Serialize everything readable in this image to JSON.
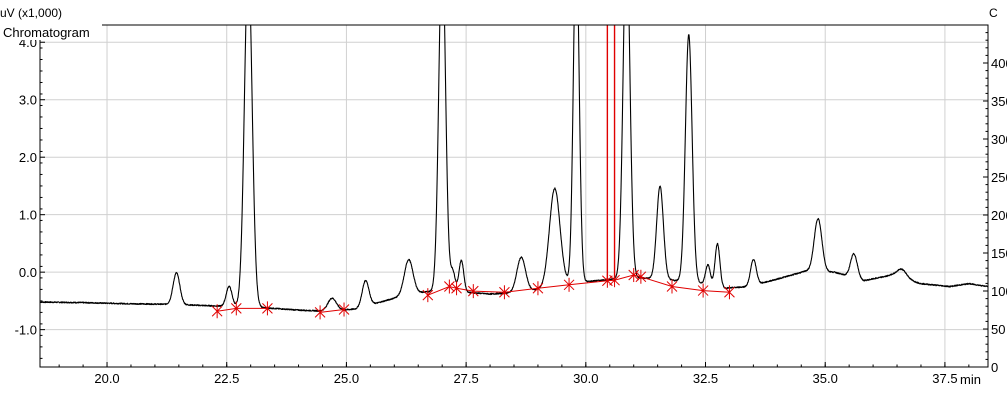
{
  "chart_data": {
    "type": "line",
    "title": "",
    "legend": "Chromatogram",
    "legend_position": "top-left",
    "ylabel_left": "uV (x1,000)",
    "ylabel_right": "C",
    "xunit": "min",
    "xlim": [
      18.6,
      38.4
    ],
    "ylim_left": [
      -1.65,
      4.3
    ],
    "ylim_right": [
      0,
      45
    ],
    "grid": true,
    "x_ticks": [
      20.0,
      22.5,
      25.0,
      27.5,
      30.0,
      32.5,
      35.0,
      37.5
    ],
    "x_tick_labels": [
      "20.0",
      "22.5",
      "25.0",
      "27.5",
      "30.0",
      "32.5",
      "35.0",
      "37.5"
    ],
    "y_ticks": [
      -1.0,
      0.0,
      1.0,
      2.0,
      3.0,
      4.0
    ],
    "y_tick_labels": [
      "-1.0",
      "0.0",
      "1.0",
      "2.0",
      "3.0",
      "4.0"
    ],
    "right_ticks": [
      0,
      5,
      10,
      15,
      20,
      25,
      30,
      35,
      40
    ],
    "right_tick_labels": [
      "0",
      "50",
      "100",
      "150",
      "200",
      "250",
      "300",
      "350",
      "400"
    ],
    "colors": {
      "trace": "#000000",
      "integration": "#e00000",
      "grid": "#d0d0d0",
      "axis": "#000000"
    },
    "series": [
      {
        "name": "Chromatogram",
        "baseline": [
          [
            18.6,
            -0.52
          ],
          [
            19.5,
            -0.53
          ],
          [
            20.5,
            -0.55
          ],
          [
            21.4,
            -0.56
          ],
          [
            22.0,
            -0.58
          ],
          [
            22.7,
            -0.6
          ],
          [
            23.3,
            -0.62
          ],
          [
            24.0,
            -0.66
          ],
          [
            24.6,
            -0.68
          ],
          [
            25.2,
            -0.64
          ],
          [
            25.8,
            -0.5
          ],
          [
            26.3,
            -0.38
          ],
          [
            26.9,
            -0.32
          ],
          [
            27.5,
            -0.35
          ],
          [
            28.0,
            -0.38
          ],
          [
            28.5,
            -0.36
          ],
          [
            29.0,
            -0.3
          ],
          [
            29.6,
            -0.2
          ],
          [
            30.2,
            -0.15
          ],
          [
            30.8,
            -0.1
          ],
          [
            31.2,
            -0.1
          ],
          [
            31.8,
            -0.14
          ],
          [
            32.3,
            -0.18
          ],
          [
            32.9,
            -0.28
          ],
          [
            33.4,
            -0.25
          ],
          [
            34.0,
            -0.12
          ],
          [
            34.6,
            0.02
          ],
          [
            35.2,
            0.0
          ],
          [
            35.8,
            -0.15
          ],
          [
            36.4,
            -0.05
          ],
          [
            37.0,
            -0.2
          ],
          [
            37.6,
            -0.25
          ],
          [
            38.0,
            -0.2
          ],
          [
            38.4,
            -0.25
          ]
        ],
        "peaks": [
          {
            "rt": 21.45,
            "height": 0.55,
            "width": 0.07
          },
          {
            "rt": 22.55,
            "height": 0.35,
            "width": 0.06
          },
          {
            "rt": 22.95,
            "height": 6.0,
            "width": 0.08
          },
          {
            "rt": 24.7,
            "height": 0.22,
            "width": 0.09
          },
          {
            "rt": 25.4,
            "height": 0.45,
            "width": 0.07
          },
          {
            "rt": 26.3,
            "height": 0.6,
            "width": 0.09
          },
          {
            "rt": 27.0,
            "height": 6.0,
            "width": 0.07
          },
          {
            "rt": 27.22,
            "height": 0.35,
            "width": 0.05
          },
          {
            "rt": 27.4,
            "height": 0.55,
            "width": 0.05
          },
          {
            "rt": 28.65,
            "height": 0.6,
            "width": 0.09
          },
          {
            "rt": 29.35,
            "height": 1.7,
            "width": 0.11
          },
          {
            "rt": 29.8,
            "height": 6.0,
            "width": 0.06
          },
          {
            "rt": 30.85,
            "height": 6.0,
            "width": 0.07
          },
          {
            "rt": 31.55,
            "height": 1.62,
            "width": 0.07
          },
          {
            "rt": 32.15,
            "height": 4.3,
            "width": 0.07
          },
          {
            "rt": 32.55,
            "height": 0.35,
            "width": 0.05
          },
          {
            "rt": 32.75,
            "height": 0.75,
            "width": 0.05
          },
          {
            "rt": 33.5,
            "height": 0.45,
            "width": 0.06
          },
          {
            "rt": 34.85,
            "height": 0.92,
            "width": 0.08
          },
          {
            "rt": 35.6,
            "height": 0.42,
            "width": 0.07
          },
          {
            "rt": 36.6,
            "height": 0.15,
            "width": 0.1
          }
        ]
      },
      {
        "name": "Integration baseline",
        "segments": [
          [
            [
              22.3,
              -0.68
            ],
            [
              22.7,
              -0.63
            ],
            [
              23.35,
              -0.63
            ]
          ],
          [
            [
              24.45,
              -0.7
            ],
            [
              24.95,
              -0.65
            ]
          ],
          [
            [
              26.7,
              -0.4
            ],
            [
              27.15,
              -0.25
            ],
            [
              27.3,
              -0.28
            ],
            [
              27.65,
              -0.33
            ],
            [
              28.3,
              -0.35
            ],
            [
              29.0,
              -0.28
            ],
            [
              29.65,
              -0.22
            ],
            [
              30.45,
              -0.15
            ],
            [
              30.6,
              -0.14
            ],
            [
              31.0,
              -0.05
            ],
            [
              31.15,
              -0.08
            ],
            [
              31.8,
              -0.25
            ],
            [
              32.45,
              -0.32
            ],
            [
              33.0,
              -0.35
            ]
          ]
        ],
        "markers": [
          [
            22.3,
            -0.68
          ],
          [
            22.7,
            -0.63
          ],
          [
            23.35,
            -0.63
          ],
          [
            24.45,
            -0.7
          ],
          [
            24.95,
            -0.65
          ],
          [
            26.7,
            -0.4
          ],
          [
            27.15,
            -0.25
          ],
          [
            27.3,
            -0.28
          ],
          [
            27.65,
            -0.33
          ],
          [
            28.3,
            -0.35
          ],
          [
            29.0,
            -0.28
          ],
          [
            29.65,
            -0.22
          ],
          [
            30.45,
            -0.15
          ],
          [
            30.6,
            -0.14
          ],
          [
            31.0,
            -0.05
          ],
          [
            31.15,
            -0.08
          ],
          [
            31.8,
            -0.25
          ],
          [
            32.45,
            -0.32
          ],
          [
            33.0,
            -0.35
          ]
        ],
        "drops": [
          [
            30.45,
            -0.15
          ],
          [
            30.6,
            -0.14
          ]
        ]
      }
    ]
  }
}
